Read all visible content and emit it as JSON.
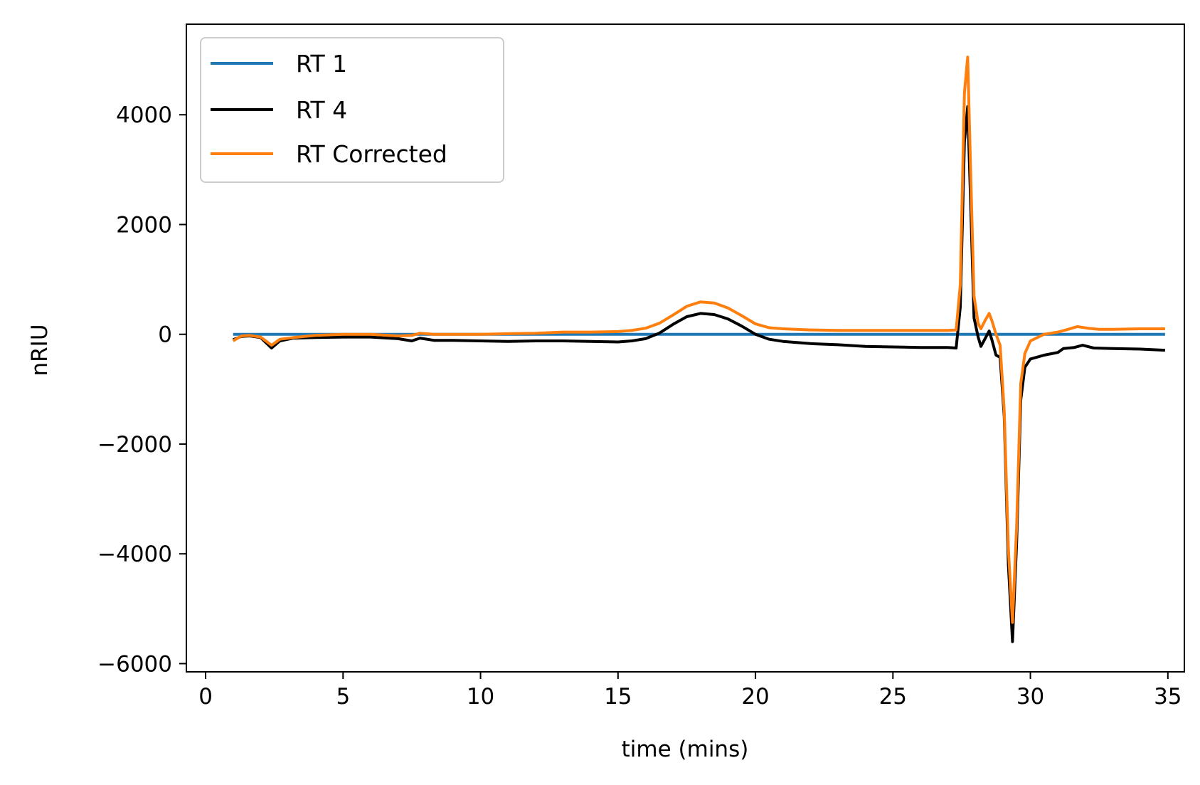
{
  "chart_data": {
    "type": "line",
    "title": "",
    "xlabel": "time (mins)",
    "ylabel": "nRIU",
    "xlim": [
      -0.7,
      35.6
    ],
    "ylim": [
      -6150,
      5650
    ],
    "xticks": [
      0,
      5,
      10,
      15,
      20,
      25,
      30,
      35
    ],
    "xtick_labels": [
      "0",
      "5",
      "10",
      "15",
      "20",
      "25",
      "30",
      "35"
    ],
    "yticks": [
      4000,
      2000,
      0,
      -2000,
      -4000,
      -6000
    ],
    "ytick_labels": [
      "4000",
      "2000",
      "0",
      "−2000",
      "−4000",
      "−6000"
    ],
    "grid": false,
    "legend_position": "top-left",
    "series": [
      {
        "name": "RT 1",
        "color": "#1f77b4",
        "points": [
          [
            1.0,
            0
          ],
          [
            34.9,
            0
          ]
        ]
      },
      {
        "name": "RT 4",
        "color": "#000000",
        "points": [
          [
            1.0,
            -100
          ],
          [
            1.3,
            -40
          ],
          [
            1.6,
            -30
          ],
          [
            2.0,
            -60
          ],
          [
            2.4,
            -250
          ],
          [
            2.7,
            -120
          ],
          [
            3.2,
            -70
          ],
          [
            4.0,
            -60
          ],
          [
            5.0,
            -50
          ],
          [
            6.0,
            -50
          ],
          [
            7.0,
            -80
          ],
          [
            7.5,
            -120
          ],
          [
            7.8,
            -70
          ],
          [
            8.3,
            -110
          ],
          [
            9.0,
            -110
          ],
          [
            10.0,
            -120
          ],
          [
            11.0,
            -130
          ],
          [
            12.0,
            -120
          ],
          [
            13.0,
            -120
          ],
          [
            14.0,
            -130
          ],
          [
            15.0,
            -140
          ],
          [
            15.5,
            -120
          ],
          [
            16.0,
            -80
          ],
          [
            16.5,
            20
          ],
          [
            17.0,
            180
          ],
          [
            17.5,
            320
          ],
          [
            18.0,
            380
          ],
          [
            18.5,
            360
          ],
          [
            19.0,
            280
          ],
          [
            19.5,
            150
          ],
          [
            20.0,
            0
          ],
          [
            20.5,
            -90
          ],
          [
            21.0,
            -130
          ],
          [
            22.0,
            -170
          ],
          [
            23.0,
            -190
          ],
          [
            24.0,
            -220
          ],
          [
            25.0,
            -230
          ],
          [
            26.0,
            -240
          ],
          [
            27.0,
            -240
          ],
          [
            27.3,
            -250
          ],
          [
            27.45,
            500
          ],
          [
            27.6,
            3500
          ],
          [
            27.72,
            4150
          ],
          [
            27.82,
            2500
          ],
          [
            27.95,
            300
          ],
          [
            28.1,
            -50
          ],
          [
            28.2,
            -220
          ],
          [
            28.35,
            -80
          ],
          [
            28.5,
            60
          ],
          [
            28.6,
            -100
          ],
          [
            28.75,
            -380
          ],
          [
            28.9,
            -420
          ],
          [
            29.05,
            -1500
          ],
          [
            29.2,
            -4200
          ],
          [
            29.35,
            -5600
          ],
          [
            29.5,
            -3800
          ],
          [
            29.65,
            -1200
          ],
          [
            29.8,
            -600
          ],
          [
            30.0,
            -450
          ],
          [
            30.5,
            -380
          ],
          [
            31.0,
            -330
          ],
          [
            31.2,
            -260
          ],
          [
            31.6,
            -240
          ],
          [
            31.9,
            -200
          ],
          [
            32.3,
            -250
          ],
          [
            33.0,
            -260
          ],
          [
            34.0,
            -270
          ],
          [
            34.9,
            -290
          ]
        ]
      },
      {
        "name": "RT Corrected",
        "color": "#ff7f0e",
        "points": [
          [
            1.0,
            -120
          ],
          [
            1.3,
            -30
          ],
          [
            1.6,
            -20
          ],
          [
            2.0,
            -50
          ],
          [
            2.4,
            -200
          ],
          [
            2.7,
            -90
          ],
          [
            3.2,
            -60
          ],
          [
            4.0,
            -20
          ],
          [
            5.0,
            0
          ],
          [
            6.0,
            0
          ],
          [
            7.0,
            -30
          ],
          [
            7.5,
            -20
          ],
          [
            7.8,
            20
          ],
          [
            8.3,
            0
          ],
          [
            9.0,
            0
          ],
          [
            10.0,
            0
          ],
          [
            11.0,
            10
          ],
          [
            12.0,
            20
          ],
          [
            13.0,
            40
          ],
          [
            14.0,
            40
          ],
          [
            15.0,
            50
          ],
          [
            15.5,
            70
          ],
          [
            16.0,
            110
          ],
          [
            16.5,
            200
          ],
          [
            17.0,
            350
          ],
          [
            17.5,
            510
          ],
          [
            18.0,
            590
          ],
          [
            18.5,
            570
          ],
          [
            19.0,
            480
          ],
          [
            19.5,
            340
          ],
          [
            20.0,
            190
          ],
          [
            20.5,
            120
          ],
          [
            21.0,
            100
          ],
          [
            22.0,
            80
          ],
          [
            23.0,
            70
          ],
          [
            24.0,
            70
          ],
          [
            25.0,
            70
          ],
          [
            26.0,
            70
          ],
          [
            27.0,
            70
          ],
          [
            27.3,
            80
          ],
          [
            27.45,
            900
          ],
          [
            27.6,
            4400
          ],
          [
            27.72,
            5050
          ],
          [
            27.82,
            3100
          ],
          [
            27.95,
            700
          ],
          [
            28.1,
            200
          ],
          [
            28.2,
            100
          ],
          [
            28.35,
            250
          ],
          [
            28.5,
            380
          ],
          [
            28.6,
            250
          ],
          [
            28.75,
            0
          ],
          [
            28.9,
            -200
          ],
          [
            29.05,
            -1400
          ],
          [
            29.2,
            -3900
          ],
          [
            29.35,
            -5250
          ],
          [
            29.5,
            -3500
          ],
          [
            29.65,
            -900
          ],
          [
            29.8,
            -350
          ],
          [
            30.0,
            -120
          ],
          [
            30.5,
            0
          ],
          [
            31.0,
            40
          ],
          [
            31.3,
            80
          ],
          [
            31.7,
            140
          ],
          [
            32.1,
            110
          ],
          [
            32.5,
            90
          ],
          [
            33.0,
            90
          ],
          [
            34.0,
            100
          ],
          [
            34.9,
            100
          ]
        ]
      }
    ]
  }
}
